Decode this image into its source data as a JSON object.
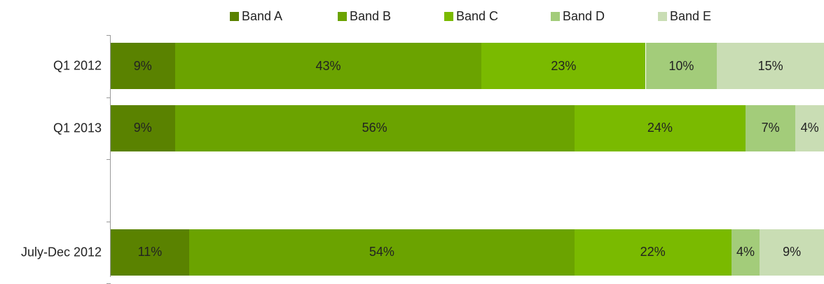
{
  "chart_data": {
    "type": "bar",
    "orientation": "horizontal",
    "stacked": "100%",
    "categories": [
      "Q1 2012",
      "Q1 2013",
      "",
      "July-Dec 2012"
    ],
    "series": [
      {
        "name": "Band A",
        "color": "#5a8200",
        "values": [
          9,
          9,
          null,
          11
        ],
        "labels": [
          "9%",
          "9%",
          "",
          "11%"
        ]
      },
      {
        "name": "Band B",
        "color": "#6ba300",
        "values": [
          43,
          56,
          null,
          54
        ],
        "labels": [
          "43%",
          "56%",
          "",
          "54%"
        ]
      },
      {
        "name": "Band C",
        "color": "#7aba00",
        "values": [
          23,
          24,
          null,
          22
        ],
        "labels": [
          "23%",
          "24%",
          "",
          "22%"
        ]
      },
      {
        "name": "Band D",
        "color": "#a3cc7a",
        "values": [
          10,
          7,
          null,
          4
        ],
        "labels": [
          "10%",
          "7%",
          "",
          "4%"
        ]
      },
      {
        "name": "Band E",
        "color": "#c9ddb4",
        "values": [
          15,
          4,
          null,
          9
        ],
        "labels": [
          "15%",
          "4%",
          "",
          "9%"
        ]
      }
    ],
    "xlim": [
      0,
      100
    ],
    "legend": "top",
    "grid": false
  }
}
